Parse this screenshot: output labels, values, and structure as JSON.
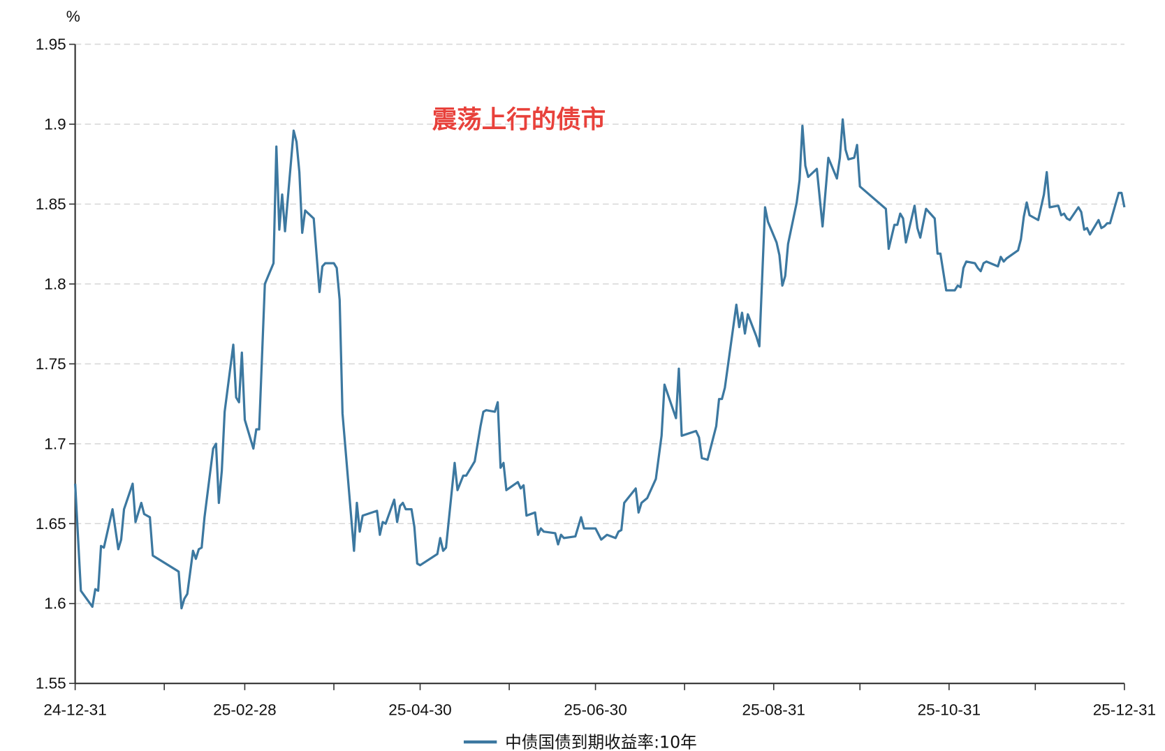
{
  "chart_data": {
    "type": "line",
    "title": "",
    "ylabel": "%",
    "xlabel": "",
    "ylim": [
      1.55,
      1.95
    ],
    "yticks": [
      "1.55",
      "1.6",
      "1.65",
      "1.7",
      "1.75",
      "1.8",
      "1.85",
      "1.9",
      "1.95"
    ],
    "xlim": [
      "2024-12-31",
      "2025-12-31"
    ],
    "xticks": [
      {
        "date": "2024-12-31",
        "label": "24-12-31"
      },
      {
        "date": "2025-01-31",
        "label": ""
      },
      {
        "date": "2025-02-28",
        "label": "25-02-28"
      },
      {
        "date": "2025-03-31",
        "label": ""
      },
      {
        "date": "2025-04-30",
        "label": "25-04-30"
      },
      {
        "date": "2025-05-31",
        "label": ""
      },
      {
        "date": "2025-06-30",
        "label": "25-06-30"
      },
      {
        "date": "2025-07-31",
        "label": ""
      },
      {
        "date": "2025-08-31",
        "label": "25-08-31"
      },
      {
        "date": "2025-09-30",
        "label": ""
      },
      {
        "date": "2025-10-31",
        "label": "25-10-31"
      },
      {
        "date": "2025-11-30",
        "label": ""
      },
      {
        "date": "2025-12-31",
        "label": "25-12-31"
      }
    ],
    "grid": "horizontal-dashed",
    "legend_position": "bottom",
    "annotation": "震荡上行的债市",
    "colors": {
      "series": "#3c78a0",
      "annotation": "#e8413b",
      "grid": "#d9d9d9",
      "axis": "#333333"
    },
    "series": [
      {
        "name": "中债国债到期收益率:10年",
        "points": [
          [
            "2024-12-31",
            1.675
          ],
          [
            "2025-01-02",
            1.608
          ],
          [
            "2025-01-06",
            1.598
          ],
          [
            "2025-01-07",
            1.609
          ],
          [
            "2025-01-08",
            1.608
          ],
          [
            "2025-01-09",
            1.636
          ],
          [
            "2025-01-10",
            1.635
          ],
          [
            "2025-01-13",
            1.659
          ],
          [
            "2025-01-15",
            1.634
          ],
          [
            "2025-01-16",
            1.64
          ],
          [
            "2025-01-17",
            1.659
          ],
          [
            "2025-01-20",
            1.675
          ],
          [
            "2025-01-21",
            1.651
          ],
          [
            "2025-01-23",
            1.663
          ],
          [
            "2025-01-24",
            1.656
          ],
          [
            "2025-01-26",
            1.654
          ],
          [
            "2025-01-27",
            1.63
          ],
          [
            "2025-02-05",
            1.62
          ],
          [
            "2025-02-06",
            1.597
          ],
          [
            "2025-02-07",
            1.603
          ],
          [
            "2025-02-08",
            1.606
          ],
          [
            "2025-02-10",
            1.633
          ],
          [
            "2025-02-11",
            1.628
          ],
          [
            "2025-02-12",
            1.634
          ],
          [
            "2025-02-13",
            1.635
          ],
          [
            "2025-02-14",
            1.654
          ],
          [
            "2025-02-17",
            1.697
          ],
          [
            "2025-02-18",
            1.7
          ],
          [
            "2025-02-19",
            1.663
          ],
          [
            "2025-02-20",
            1.683
          ],
          [
            "2025-02-21",
            1.72
          ],
          [
            "2025-02-24",
            1.762
          ],
          [
            "2025-02-25",
            1.729
          ],
          [
            "2025-02-26",
            1.726
          ],
          [
            "2025-02-27",
            1.757
          ],
          [
            "2025-02-28",
            1.715
          ],
          [
            "2025-03-03",
            1.697
          ],
          [
            "2025-03-04",
            1.709
          ],
          [
            "2025-03-05",
            1.709
          ],
          [
            "2025-03-07",
            1.8
          ],
          [
            "2025-03-10",
            1.813
          ],
          [
            "2025-03-11",
            1.886
          ],
          [
            "2025-03-12",
            1.834
          ],
          [
            "2025-03-13",
            1.856
          ],
          [
            "2025-03-14",
            1.833
          ],
          [
            "2025-03-17",
            1.896
          ],
          [
            "2025-03-18",
            1.889
          ],
          [
            "2025-03-19",
            1.87
          ],
          [
            "2025-03-20",
            1.832
          ],
          [
            "2025-03-21",
            1.846
          ],
          [
            "2025-03-24",
            1.841
          ],
          [
            "2025-03-26",
            1.795
          ],
          [
            "2025-03-27",
            1.811
          ],
          [
            "2025-03-28",
            1.813
          ],
          [
            "2025-03-31",
            1.813
          ],
          [
            "2025-04-01",
            1.81
          ],
          [
            "2025-04-02",
            1.79
          ],
          [
            "2025-04-03",
            1.719
          ],
          [
            "2025-04-07",
            1.633
          ],
          [
            "2025-04-08",
            1.663
          ],
          [
            "2025-04-09",
            1.645
          ],
          [
            "2025-04-10",
            1.655
          ],
          [
            "2025-04-15",
            1.658
          ],
          [
            "2025-04-16",
            1.643
          ],
          [
            "2025-04-17",
            1.651
          ],
          [
            "2025-04-18",
            1.65
          ],
          [
            "2025-04-21",
            1.665
          ],
          [
            "2025-04-22",
            1.651
          ],
          [
            "2025-04-23",
            1.661
          ],
          [
            "2025-04-24",
            1.663
          ],
          [
            "2025-04-25",
            1.659
          ],
          [
            "2025-04-27",
            1.659
          ],
          [
            "2025-04-28",
            1.648
          ],
          [
            "2025-04-29",
            1.625
          ],
          [
            "2025-04-30",
            1.624
          ],
          [
            "2025-05-06",
            1.631
          ],
          [
            "2025-05-07",
            1.641
          ],
          [
            "2025-05-08",
            1.633
          ],
          [
            "2025-05-09",
            1.635
          ],
          [
            "2025-05-12",
            1.688
          ],
          [
            "2025-05-13",
            1.671
          ],
          [
            "2025-05-15",
            1.68
          ],
          [
            "2025-05-16",
            1.68
          ],
          [
            "2025-05-19",
            1.689
          ],
          [
            "2025-05-21",
            1.711
          ],
          [
            "2025-05-22",
            1.72
          ],
          [
            "2025-05-23",
            1.721
          ],
          [
            "2025-05-26",
            1.72
          ],
          [
            "2025-05-27",
            1.726
          ],
          [
            "2025-05-28",
            1.685
          ],
          [
            "2025-05-29",
            1.688
          ],
          [
            "2025-05-30",
            1.671
          ],
          [
            "2025-06-03",
            1.676
          ],
          [
            "2025-06-04",
            1.672
          ],
          [
            "2025-06-05",
            1.674
          ],
          [
            "2025-06-06",
            1.655
          ],
          [
            "2025-06-09",
            1.657
          ],
          [
            "2025-06-10",
            1.643
          ],
          [
            "2025-06-11",
            1.647
          ],
          [
            "2025-06-12",
            1.645
          ],
          [
            "2025-06-16",
            1.644
          ],
          [
            "2025-06-17",
            1.637
          ],
          [
            "2025-06-18",
            1.643
          ],
          [
            "2025-06-19",
            1.641
          ],
          [
            "2025-06-23",
            1.642
          ],
          [
            "2025-06-25",
            1.654
          ],
          [
            "2025-06-26",
            1.647
          ],
          [
            "2025-06-30",
            1.647
          ],
          [
            "2025-07-02",
            1.64
          ],
          [
            "2025-07-04",
            1.643
          ],
          [
            "2025-07-07",
            1.641
          ],
          [
            "2025-07-08",
            1.645
          ],
          [
            "2025-07-09",
            1.646
          ],
          [
            "2025-07-10",
            1.663
          ],
          [
            "2025-07-14",
            1.672
          ],
          [
            "2025-07-15",
            1.657
          ],
          [
            "2025-07-16",
            1.663
          ],
          [
            "2025-07-18",
            1.666
          ],
          [
            "2025-07-21",
            1.678
          ],
          [
            "2025-07-23",
            1.705
          ],
          [
            "2025-07-24",
            1.737
          ],
          [
            "2025-07-28",
            1.716
          ],
          [
            "2025-07-29",
            1.747
          ],
          [
            "2025-07-30",
            1.705
          ],
          [
            "2025-08-04",
            1.708
          ],
          [
            "2025-08-05",
            1.704
          ],
          [
            "2025-08-06",
            1.691
          ],
          [
            "2025-08-08",
            1.69
          ],
          [
            "2025-08-11",
            1.711
          ],
          [
            "2025-08-12",
            1.728
          ],
          [
            "2025-08-13",
            1.728
          ],
          [
            "2025-08-14",
            1.735
          ],
          [
            "2025-08-18",
            1.787
          ],
          [
            "2025-08-19",
            1.773
          ],
          [
            "2025-08-20",
            1.782
          ],
          [
            "2025-08-21",
            1.769
          ],
          [
            "2025-08-22",
            1.781
          ],
          [
            "2025-08-25",
            1.767
          ],
          [
            "2025-08-26",
            1.761
          ],
          [
            "2025-08-28",
            1.848
          ],
          [
            "2025-08-29",
            1.839
          ],
          [
            "2025-09-01",
            1.826
          ],
          [
            "2025-09-02",
            1.818
          ],
          [
            "2025-09-03",
            1.799
          ],
          [
            "2025-09-04",
            1.805
          ],
          [
            "2025-09-05",
            1.825
          ],
          [
            "2025-09-08",
            1.851
          ],
          [
            "2025-09-09",
            1.865
          ],
          [
            "2025-09-10",
            1.899
          ],
          [
            "2025-09-11",
            1.874
          ],
          [
            "2025-09-12",
            1.867
          ],
          [
            "2025-09-15",
            1.872
          ],
          [
            "2025-09-17",
            1.836
          ],
          [
            "2025-09-19",
            1.879
          ],
          [
            "2025-09-22",
            1.866
          ],
          [
            "2025-09-23",
            1.879
          ],
          [
            "2025-09-24",
            1.903
          ],
          [
            "2025-09-25",
            1.884
          ],
          [
            "2025-09-26",
            1.878
          ],
          [
            "2025-09-28",
            1.879
          ],
          [
            "2025-09-29",
            1.887
          ],
          [
            "2025-09-30",
            1.861
          ],
          [
            "2025-10-09",
            1.847
          ],
          [
            "2025-10-10",
            1.822
          ],
          [
            "2025-10-12",
            1.837
          ],
          [
            "2025-10-13",
            1.837
          ],
          [
            "2025-10-14",
            1.844
          ],
          [
            "2025-10-15",
            1.841
          ],
          [
            "2025-10-16",
            1.826
          ],
          [
            "2025-10-19",
            1.849
          ],
          [
            "2025-10-20",
            1.835
          ],
          [
            "2025-10-21",
            1.829
          ],
          [
            "2025-10-23",
            1.847
          ],
          [
            "2025-10-26",
            1.841
          ],
          [
            "2025-10-27",
            1.819
          ],
          [
            "2025-10-28",
            1.819
          ],
          [
            "2025-10-30",
            1.796
          ],
          [
            "2025-11-02",
            1.796
          ],
          [
            "2025-11-03",
            1.799
          ],
          [
            "2025-11-04",
            1.798
          ],
          [
            "2025-11-05",
            1.81
          ],
          [
            "2025-11-06",
            1.814
          ],
          [
            "2025-11-09",
            1.813
          ],
          [
            "2025-11-10",
            1.81
          ],
          [
            "2025-11-11",
            1.808
          ],
          [
            "2025-11-12",
            1.813
          ],
          [
            "2025-11-13",
            1.814
          ],
          [
            "2025-11-17",
            1.811
          ],
          [
            "2025-11-18",
            1.817
          ],
          [
            "2025-11-19",
            1.814
          ],
          [
            "2025-11-20",
            1.816
          ],
          [
            "2025-11-24",
            1.821
          ],
          [
            "2025-11-25",
            1.828
          ],
          [
            "2025-11-26",
            1.842
          ],
          [
            "2025-11-27",
            1.851
          ],
          [
            "2025-11-28",
            1.843
          ],
          [
            "2025-12-01",
            1.84
          ],
          [
            "2025-12-03",
            1.856
          ],
          [
            "2025-12-04",
            1.87
          ],
          [
            "2025-12-05",
            1.848
          ],
          [
            "2025-12-08",
            1.849
          ],
          [
            "2025-12-09",
            1.843
          ],
          [
            "2025-12-10",
            1.844
          ],
          [
            "2025-12-11",
            1.841
          ],
          [
            "2025-12-12",
            1.84
          ],
          [
            "2025-12-15",
            1.848
          ],
          [
            "2025-12-16",
            1.845
          ],
          [
            "2025-12-17",
            1.834
          ],
          [
            "2025-12-18",
            1.835
          ],
          [
            "2025-12-19",
            1.831
          ],
          [
            "2025-12-22",
            1.84
          ],
          [
            "2025-12-23",
            1.835
          ],
          [
            "2025-12-24",
            1.836
          ],
          [
            "2025-12-25",
            1.838
          ],
          [
            "2025-12-26",
            1.838
          ],
          [
            "2025-12-29",
            1.857
          ],
          [
            "2025-12-30",
            1.857
          ],
          [
            "2025-12-31",
            1.848
          ]
        ]
      }
    ]
  }
}
